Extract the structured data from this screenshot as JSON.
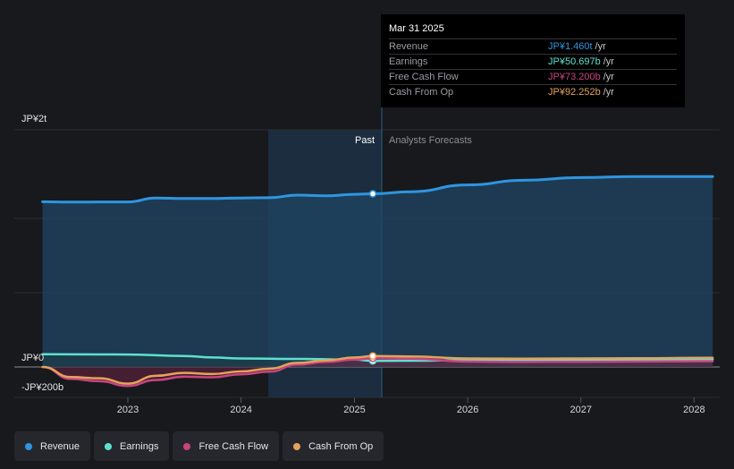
{
  "chart_data": {
    "type": "line",
    "y_axis": {
      "top_label": "JP¥2t",
      "zero_label": "JP¥0",
      "bottom_label": "-JP¥200b",
      "ylim_billions": [
        -200,
        2000
      ]
    },
    "x_axis": {
      "ticks": [
        "2023",
        "2024",
        "2025",
        "2026",
        "2027",
        "2028"
      ]
    },
    "divider": {
      "past_label": "Past",
      "forecast_label": "Analysts Forecasts",
      "date": "Mar 31 2025"
    },
    "series": [
      {
        "name": "Revenue",
        "color": "#2f95e0",
        "points": [
          [
            "2022-04",
            1393
          ],
          [
            "2022-07",
            1390
          ],
          [
            "2022-10",
            1392
          ],
          [
            "2023-01",
            1392
          ],
          [
            "2023-04",
            1424
          ],
          [
            "2023-07",
            1420
          ],
          [
            "2023-10",
            1421
          ],
          [
            "2024-01",
            1425
          ],
          [
            "2024-04",
            1427
          ],
          [
            "2024-07",
            1449
          ],
          [
            "2024-10",
            1443
          ],
          [
            "2025-01",
            1456
          ],
          [
            "2025-03",
            1460
          ],
          [
            "2025-07",
            1478
          ],
          [
            "2026-01",
            1535
          ],
          [
            "2026-07",
            1574
          ],
          [
            "2027-01",
            1597
          ],
          [
            "2027-07",
            1606
          ],
          [
            "2028-03",
            1606
          ]
        ]
      },
      {
        "name": "Earnings",
        "color": "#5ee0cf",
        "points": [
          [
            "2022-04",
            107
          ],
          [
            "2022-10",
            106
          ],
          [
            "2023-01",
            105
          ],
          [
            "2023-07",
            93
          ],
          [
            "2023-10",
            80
          ],
          [
            "2024-01",
            72
          ],
          [
            "2024-07",
            68
          ],
          [
            "2025-01",
            62
          ],
          [
            "2025-03",
            51
          ],
          [
            "2025-07",
            53
          ],
          [
            "2026-01",
            57
          ],
          [
            "2026-07",
            59
          ],
          [
            "2027-07",
            60
          ],
          [
            "2028-03",
            62
          ]
        ]
      },
      {
        "name": "Free Cash Flow",
        "color": "#c8447f",
        "points": [
          [
            "2022-04",
            0
          ],
          [
            "2022-07",
            -100
          ],
          [
            "2022-10",
            -120
          ],
          [
            "2023-01",
            -160
          ],
          [
            "2023-04",
            -110
          ],
          [
            "2023-07",
            -82
          ],
          [
            "2023-10",
            -87
          ],
          [
            "2024-01",
            -62
          ],
          [
            "2024-04",
            -40
          ],
          [
            "2024-07",
            20
          ],
          [
            "2024-10",
            42
          ],
          [
            "2025-01",
            62
          ],
          [
            "2025-03",
            73
          ],
          [
            "2025-07",
            70
          ],
          [
            "2026-01",
            45
          ],
          [
            "2026-07",
            42
          ],
          [
            "2027-07",
            45
          ],
          [
            "2028-03",
            48
          ]
        ]
      },
      {
        "name": "Cash From Op",
        "color": "#e5a25a",
        "points": [
          [
            "2022-04",
            0
          ],
          [
            "2022-07",
            -85
          ],
          [
            "2022-10",
            -95
          ],
          [
            "2023-01",
            -140
          ],
          [
            "2023-04",
            -75
          ],
          [
            "2023-07",
            -50
          ],
          [
            "2023-10",
            -60
          ],
          [
            "2024-01",
            -38
          ],
          [
            "2024-04",
            -15
          ],
          [
            "2024-07",
            35
          ],
          [
            "2024-10",
            55
          ],
          [
            "2025-01",
            80
          ],
          [
            "2025-03",
            92
          ],
          [
            "2025-07",
            88
          ],
          [
            "2026-01",
            72
          ],
          [
            "2026-07",
            70
          ],
          [
            "2027-07",
            73
          ],
          [
            "2028-03",
            78
          ]
        ]
      }
    ],
    "tooltip": {
      "date": "Mar 31 2025",
      "rows": [
        {
          "label": "Revenue",
          "value": "JP¥1.460t",
          "unit": "/yr",
          "color": "#2f95e0"
        },
        {
          "label": "Earnings",
          "value": "JP¥50.697b",
          "unit": "/yr",
          "color": "#5ee0cf"
        },
        {
          "label": "Free Cash Flow",
          "value": "JP¥73.200b",
          "unit": "/yr",
          "color": "#c8447f"
        },
        {
          "label": "Cash From Op",
          "value": "JP¥92.252b",
          "unit": "/yr",
          "color": "#e5a25a"
        }
      ]
    },
    "legend": [
      {
        "label": "Revenue",
        "color": "#2f95e0"
      },
      {
        "label": "Earnings",
        "color": "#5ee0cf"
      },
      {
        "label": "Free Cash Flow",
        "color": "#c8447f"
      },
      {
        "label": "Cash From Op",
        "color": "#e5a25a"
      }
    ]
  }
}
